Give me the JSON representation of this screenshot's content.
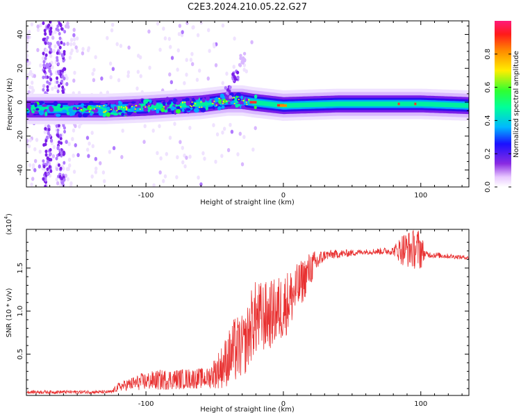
{
  "title": "C2E3.2024.210.05.22.G27",
  "colors": {
    "snr_line": "#e83030",
    "axis": "#000000",
    "background": "#ffffff"
  },
  "chart_data": [
    {
      "type": "heatmap",
      "xlabel": "Height of straight line (km)",
      "ylabel": "Frequency (Hz)",
      "xlim": [
        -187,
        135
      ],
      "ylim": [
        -50,
        48
      ],
      "x_ticks": [
        -100,
        0,
        100
      ],
      "y_ticks": [
        40,
        20,
        0,
        -20,
        -40
      ],
      "x_tick_labels": [
        "-100",
        "0",
        "100"
      ],
      "y_tick_labels": [
        "40",
        "20",
        "0",
        "-20",
        "-40"
      ],
      "colorbar": {
        "label": "Normalized spectral amplitude",
        "range": [
          0,
          1
        ],
        "ticks": [
          0.0,
          0.2,
          0.4,
          0.6,
          0.8
        ],
        "tick_labels": [
          "0.0",
          "0.2",
          "0.4",
          "0.6",
          "0.8"
        ],
        "colormap": "rainbow (white-violet-blue-cyan-green-yellow-red-magenta)"
      },
      "ridge": {
        "description": "dominant tone near 0 Hz",
        "points": [
          {
            "x": -185,
            "y": -4
          },
          {
            "x": -160,
            "y": -4
          },
          {
            "x": -130,
            "y": -4
          },
          {
            "x": -100,
            "y": -3
          },
          {
            "x": -80,
            "y": -2
          },
          {
            "x": -60,
            "y": -1
          },
          {
            "x": -40,
            "y": 1
          },
          {
            "x": -30,
            "y": 1
          },
          {
            "x": -22,
            "y": 0
          },
          {
            "x": 0,
            "y": -2
          },
          {
            "x": 40,
            "y": -1
          },
          {
            "x": 100,
            "y": -1
          },
          {
            "x": 135,
            "y": -2
          }
        ],
        "plume": [
          {
            "x": -40,
            "y": 5
          },
          {
            "x": -35,
            "y": 15
          },
          {
            "x": -30,
            "y": 25
          }
        ]
      }
    },
    {
      "type": "line",
      "xlabel": "Height of straight line (km)",
      "ylabel": "SNR (10 * v/v)",
      "y_multiplier": "(x10",
      "y_multiplier_exp": "4",
      "xlim": [
        -187,
        135
      ],
      "ylim": [
        0.02,
        1.95
      ],
      "x_ticks": [
        -100,
        0,
        100
      ],
      "y_ticks": [
        0.5,
        1.0,
        1.5
      ],
      "x_tick_labels": [
        "-100",
        "0",
        "100"
      ],
      "y_tick_labels": [
        "0.5",
        "1.0",
        "1.5"
      ],
      "series": [
        {
          "color": "#e83030",
          "profile": [
            {
              "x": -187,
              "y": 0.06,
              "noise": 0.02
            },
            {
              "x": -125,
              "y": 0.06,
              "noise": 0.02
            },
            {
              "x": -120,
              "y": 0.12,
              "noise": 0.05
            },
            {
              "x": -103,
              "y": 0.18,
              "noise": 0.1
            },
            {
              "x": -90,
              "y": 0.2,
              "noise": 0.12
            },
            {
              "x": -60,
              "y": 0.22,
              "noise": 0.12
            },
            {
              "x": -55,
              "y": 0.22,
              "noise": 0.12
            },
            {
              "x": -45,
              "y": 0.35,
              "noise": 0.25
            },
            {
              "x": -35,
              "y": 0.55,
              "noise": 0.4
            },
            {
              "x": -28,
              "y": 0.6,
              "noise": 0.35
            },
            {
              "x": -22,
              "y": 0.9,
              "noise": 0.45
            },
            {
              "x": -10,
              "y": 0.95,
              "noise": 0.4
            },
            {
              "x": 0,
              "y": 1.05,
              "noise": 0.4
            },
            {
              "x": 10,
              "y": 1.25,
              "noise": 0.3
            },
            {
              "x": 20,
              "y": 1.5,
              "noise": 0.2
            },
            {
              "x": 30,
              "y": 1.65,
              "noise": 0.06
            },
            {
              "x": 60,
              "y": 1.69,
              "noise": 0.03
            },
            {
              "x": 80,
              "y": 1.7,
              "noise": 0.05
            },
            {
              "x": 87,
              "y": 1.72,
              "noise": 0.2
            },
            {
              "x": 100,
              "y": 1.72,
              "noise": 0.25
            },
            {
              "x": 103,
              "y": 1.66,
              "noise": 0.04
            },
            {
              "x": 135,
              "y": 1.62,
              "noise": 0.02
            }
          ]
        }
      ]
    }
  ]
}
